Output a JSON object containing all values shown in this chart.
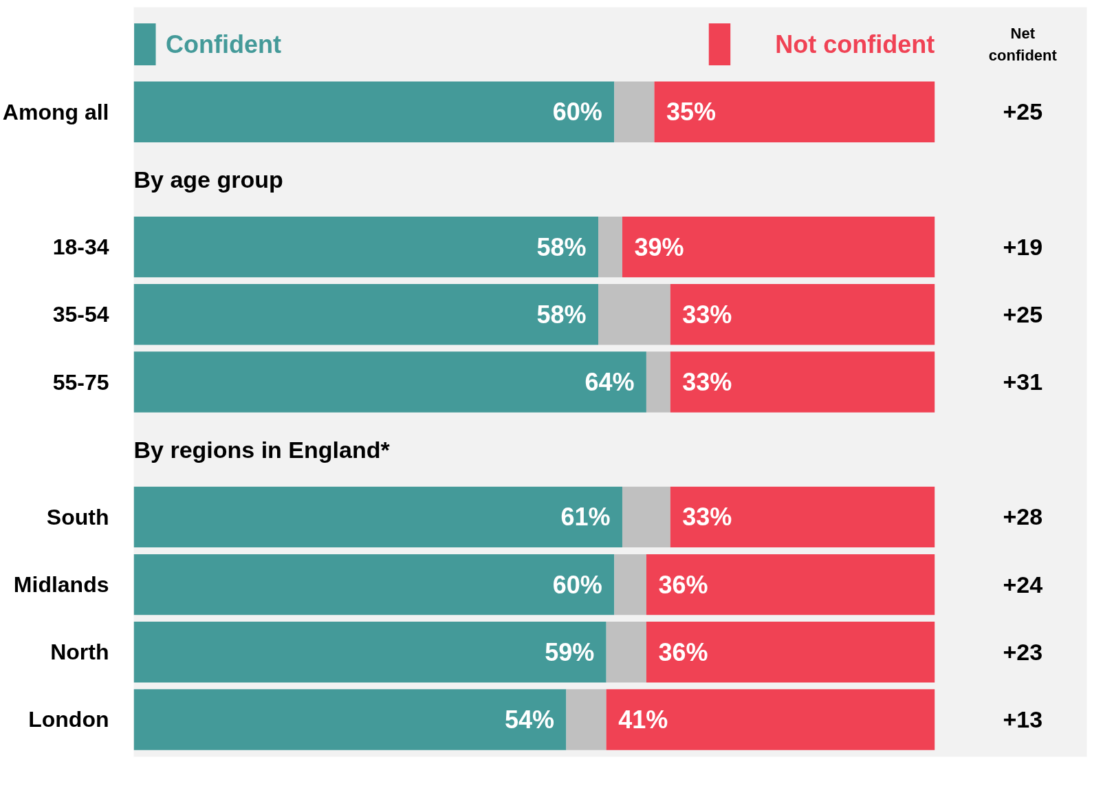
{
  "chart_data": {
    "type": "bar",
    "orientation": "horizontal",
    "stacked": true,
    "legend": "top",
    "categories": [
      "Among all",
      null,
      "18-34",
      "35-54",
      "55-75",
      null,
      "South",
      "Midlands",
      "North",
      "London"
    ],
    "series": [
      {
        "name": "Confident",
        "color": "#449a99",
        "values": [
          60,
          null,
          58,
          58,
          64,
          null,
          61,
          60,
          59,
          54
        ],
        "value_labels": [
          "60%",
          null,
          "58%",
          "58%",
          "64%",
          null,
          "61%",
          "60%",
          "59%",
          "54%"
        ]
      },
      {
        "color": "#c0c0c0",
        "values": [
          5,
          null,
          3,
          9,
          3,
          null,
          6,
          4,
          5,
          5
        ]
      },
      {
        "name": "Not confident",
        "color": "#f04254",
        "values": [
          35,
          null,
          39,
          33,
          33,
          null,
          33,
          36,
          36,
          41
        ],
        "value_labels": [
          "35%",
          null,
          "39%",
          "33%",
          "33%",
          null,
          "33%",
          "36%",
          "36%",
          "41%"
        ]
      }
    ],
    "annotations": [
      "By age group",
      "By regions in England*",
      "Net\nconfident",
      "+25",
      "+19",
      "+25",
      "+31",
      "+28",
      "+24",
      "+23",
      "+13"
    ]
  }
}
